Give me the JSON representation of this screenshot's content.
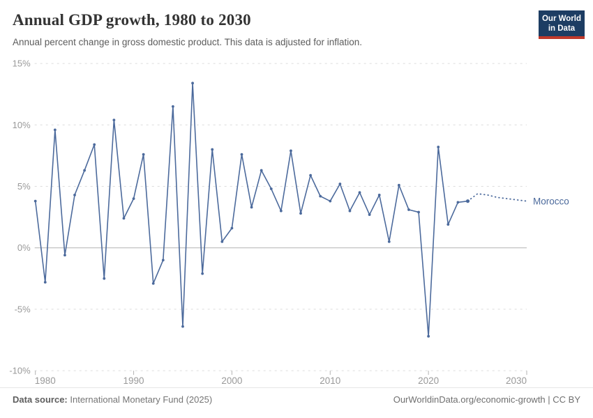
{
  "header": {
    "title": "Annual GDP growth, 1980 to 2030",
    "subtitle": "Annual percent change in gross domestic product. This data is adjusted for inflation.",
    "logo": {
      "line1": "Our World",
      "line2": "in Data",
      "bg_color": "#1d3d63",
      "bar_color": "#c0392b"
    }
  },
  "chart_data": {
    "type": "line",
    "title": "Annual GDP growth, 1980 to 2030",
    "entity_label": "Morocco",
    "unit": "%",
    "xlim": [
      1980,
      2030
    ],
    "ylim": [
      -10,
      15
    ],
    "grid": "horizontal-dashed",
    "legend_position": "line-end-label",
    "y_ticks": [
      15,
      10,
      5,
      0,
      -5,
      -10
    ],
    "y_tick_labels": [
      "15%",
      "10%",
      "5%",
      "0%",
      "-5%",
      "-10%"
    ],
    "x_ticks": [
      1980,
      1990,
      2000,
      2010,
      2020,
      2030
    ],
    "series": [
      {
        "name": "Morocco",
        "style": "solid",
        "x": [
          1980,
          1981,
          1982,
          1983,
          1984,
          1985,
          1986,
          1987,
          1988,
          1989,
          1990,
          1991,
          1992,
          1993,
          1994,
          1995,
          1996,
          1997,
          1998,
          1999,
          2000,
          2001,
          2002,
          2003,
          2004,
          2005,
          2006,
          2007,
          2008,
          2009,
          2010,
          2011,
          2012,
          2013,
          2014,
          2015,
          2016,
          2017,
          2018,
          2019,
          2020,
          2021,
          2022,
          2023,
          2024
        ],
        "values": [
          3.8,
          -2.8,
          9.6,
          -0.6,
          4.3,
          6.3,
          8.4,
          -2.5,
          10.4,
          2.4,
          4.0,
          7.6,
          -2.9,
          -1.0,
          11.5,
          -6.4,
          13.4,
          -2.1,
          8.0,
          0.5,
          1.6,
          7.6,
          3.3,
          6.3,
          4.8,
          3.0,
          7.9,
          2.8,
          5.9,
          4.2,
          3.8,
          5.2,
          3.0,
          4.5,
          2.7,
          4.3,
          0.5,
          5.1,
          3.1,
          2.9,
          -7.2,
          8.2,
          1.9,
          3.7,
          3.8
        ]
      },
      {
        "name": "Morocco (projection)",
        "style": "dotted",
        "x": [
          2024,
          2025,
          2026,
          2027,
          2028,
          2029,
          2030
        ],
        "values": [
          3.8,
          4.4,
          4.3,
          4.1,
          4.0,
          3.9,
          3.8
        ]
      }
    ],
    "colors": {
      "line": "#4c6a9c",
      "entity_label": "#4c6a9c",
      "grid": "#dcdcdc",
      "zero_line": "#b3b3b3",
      "axis_text": "#999999",
      "tick_mark": "#b3b3b3"
    }
  },
  "footer": {
    "source_label": "Data source:",
    "source_value": " International Monetary Fund (2025)",
    "credit": "OurWorldinData.org/economic-growth | CC BY"
  }
}
